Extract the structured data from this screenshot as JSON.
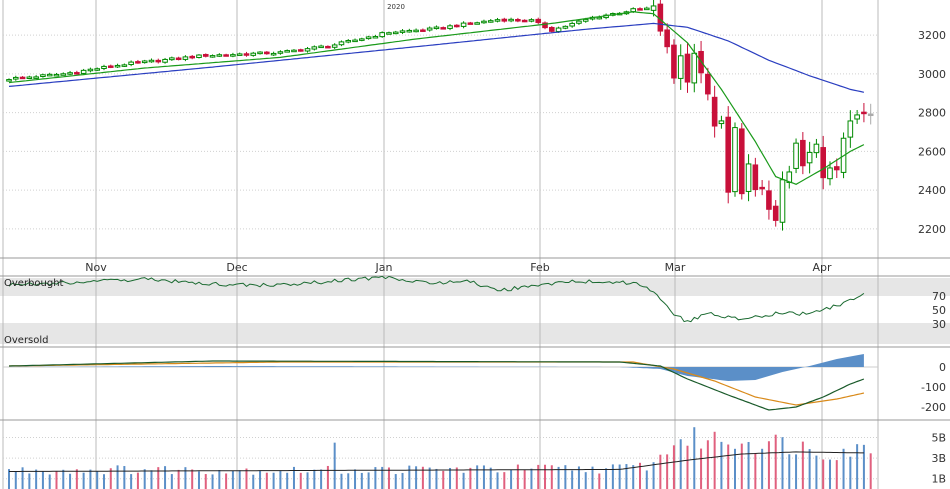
{
  "colors": {
    "up": "#008a00",
    "down": "#c8103a",
    "last": "#aaaaaa",
    "ma_short": "#1a9a1a",
    "ma_long": "#2a3ec0",
    "rsi": "#1a6a30",
    "macd_line": "#1a5a2a",
    "signal_line": "#d98a1a",
    "histogram": "#5b8fc8",
    "vol_up": "#5b8fc8",
    "vol_down": "#e0607e",
    "vol_avg": "#222222",
    "grid": "#bbbbbb",
    "band": "#e6e6e6"
  },
  "chart_data": [
    {
      "id": "price",
      "type": "candlestick",
      "title": "",
      "year_label": "2020",
      "x_labels": [
        "Nov",
        "Dec",
        "Jan",
        "Feb",
        "Mar",
        "Apr"
      ],
      "y_ticks": [
        "2200",
        "2400",
        "2600",
        "2800",
        "3000",
        "3200"
      ],
      "ylim": [
        2050,
        3350
      ],
      "anchors": [
        {
          "t": 0,
          "v": 2975
        },
        {
          "t": 8,
          "v": 3000
        },
        {
          "t": 17,
          "v": 3050
        },
        {
          "t": 29,
          "v": 3095
        },
        {
          "t": 40,
          "v": 3110
        },
        {
          "t": 48,
          "v": 3150
        },
        {
          "t": 56,
          "v": 3215
        },
        {
          "t": 62,
          "v": 3230
        },
        {
          "t": 66,
          "v": 3250
        },
        {
          "t": 72,
          "v": 3280
        },
        {
          "t": 77,
          "v": 3275
        },
        {
          "t": 80,
          "v": 3225
        },
        {
          "t": 86,
          "v": 3290
        },
        {
          "t": 92,
          "v": 3330
        },
        {
          "t": 95,
          "v": 3340
        },
        {
          "t": 96,
          "v": 3225
        },
        {
          "t": 97,
          "v": 3130
        },
        {
          "t": 98,
          "v": 2980
        },
        {
          "t": 99,
          "v": 3100
        },
        {
          "t": 100,
          "v": 2955
        },
        {
          "t": 101,
          "v": 3120
        },
        {
          "t": 102,
          "v": 3010
        },
        {
          "t": 103,
          "v": 2885
        },
        {
          "t": 104,
          "v": 2740
        },
        {
          "t": 105,
          "v": 2745
        },
        {
          "t": 106,
          "v": 2385
        },
        {
          "t": 107,
          "v": 2715
        },
        {
          "t": 108,
          "v": 2395
        },
        {
          "t": 109,
          "v": 2530
        },
        {
          "t": 110,
          "v": 2390
        },
        {
          "t": 111,
          "v": 2410
        },
        {
          "t": 112,
          "v": 2300
        },
        {
          "t": 113,
          "v": 2240
        },
        {
          "t": 114,
          "v": 2450
        },
        {
          "t": 115,
          "v": 2480
        },
        {
          "t": 116,
          "v": 2630
        },
        {
          "t": 117,
          "v": 2540
        },
        {
          "t": 118,
          "v": 2585
        },
        {
          "t": 119,
          "v": 2625
        },
        {
          "t": 120,
          "v": 2470
        },
        {
          "t": 121,
          "v": 2525
        },
        {
          "t": 122,
          "v": 2490
        },
        {
          "t": 123,
          "v": 2665
        },
        {
          "t": 124,
          "v": 2750
        },
        {
          "t": 125,
          "v": 2785
        },
        {
          "t": 126,
          "v": 2790
        }
      ],
      "ma_short": [
        {
          "t": 0,
          "v": 2955
        },
        {
          "t": 20,
          "v": 3030
        },
        {
          "t": 40,
          "v": 3085
        },
        {
          "t": 60,
          "v": 3180
        },
        {
          "t": 80,
          "v": 3260
        },
        {
          "t": 92,
          "v": 3320
        },
        {
          "t": 95,
          "v": 3310
        },
        {
          "t": 100,
          "v": 3160
        },
        {
          "t": 105,
          "v": 2920
        },
        {
          "t": 110,
          "v": 2650
        },
        {
          "t": 113,
          "v": 2470
        },
        {
          "t": 116,
          "v": 2430
        },
        {
          "t": 120,
          "v": 2510
        },
        {
          "t": 124,
          "v": 2600
        },
        {
          "t": 126,
          "v": 2635
        }
      ],
      "ma_long": [
        {
          "t": 0,
          "v": 2935
        },
        {
          "t": 30,
          "v": 3035
        },
        {
          "t": 60,
          "v": 3140
        },
        {
          "t": 85,
          "v": 3230
        },
        {
          "t": 95,
          "v": 3260
        },
        {
          "t": 100,
          "v": 3240
        },
        {
          "t": 106,
          "v": 3170
        },
        {
          "t": 112,
          "v": 3070
        },
        {
          "t": 118,
          "v": 2990
        },
        {
          "t": 124,
          "v": 2920
        },
        {
          "t": 126,
          "v": 2905
        }
      ]
    },
    {
      "id": "rsi",
      "type": "line",
      "zone_labels": [
        "Overbought",
        "Oversold"
      ],
      "y_ticks": [
        "70",
        "50",
        "30"
      ],
      "ylim": [
        0,
        100
      ],
      "anchors": [
        {
          "t": 0,
          "v": 60
        },
        {
          "t": 20,
          "v": 66
        },
        {
          "t": 33,
          "v": 60
        },
        {
          "t": 40,
          "v": 60
        },
        {
          "t": 55,
          "v": 68
        },
        {
          "t": 62,
          "v": 62
        },
        {
          "t": 68,
          "v": 64
        },
        {
          "t": 72,
          "v": 54
        },
        {
          "t": 76,
          "v": 58
        },
        {
          "t": 84,
          "v": 64
        },
        {
          "t": 92,
          "v": 62
        },
        {
          "t": 95,
          "v": 54
        },
        {
          "t": 98,
          "v": 28
        },
        {
          "t": 100,
          "v": 22
        },
        {
          "t": 103,
          "v": 30
        },
        {
          "t": 108,
          "v": 24
        },
        {
          "t": 113,
          "v": 30
        },
        {
          "t": 118,
          "v": 30
        },
        {
          "t": 122,
          "v": 38
        },
        {
          "t": 126,
          "v": 50
        }
      ]
    },
    {
      "id": "macd",
      "type": "line",
      "y_ticks": [
        "0",
        "-100",
        "-200"
      ],
      "ylim": [
        -260,
        60
      ],
      "macd_line": [
        {
          "t": 0,
          "v": 5
        },
        {
          "t": 30,
          "v": 30
        },
        {
          "t": 90,
          "v": 25
        },
        {
          "t": 96,
          "v": 5
        },
        {
          "t": 100,
          "v": -60
        },
        {
          "t": 106,
          "v": -140
        },
        {
          "t": 112,
          "v": -215
        },
        {
          "t": 116,
          "v": -200
        },
        {
          "t": 120,
          "v": -150
        },
        {
          "t": 124,
          "v": -85
        },
        {
          "t": 126,
          "v": -60
        }
      ],
      "signal_line": [
        {
          "t": 0,
          "v": 5
        },
        {
          "t": 40,
          "v": 25
        },
        {
          "t": 92,
          "v": 25
        },
        {
          "t": 98,
          "v": -10
        },
        {
          "t": 104,
          "v": -70
        },
        {
          "t": 110,
          "v": -150
        },
        {
          "t": 116,
          "v": -190
        },
        {
          "t": 122,
          "v": -160
        },
        {
          "t": 126,
          "v": -130
        }
      ],
      "histogram": [
        {
          "t": 0,
          "v": 0
        },
        {
          "t": 30,
          "v": 5
        },
        {
          "t": 90,
          "v": 0
        },
        {
          "t": 96,
          "v": -10
        },
        {
          "t": 100,
          "v": -45
        },
        {
          "t": 106,
          "v": -70
        },
        {
          "t": 110,
          "v": -65
        },
        {
          "t": 114,
          "v": -25
        },
        {
          "t": 118,
          "v": 5
        },
        {
          "t": 122,
          "v": 40
        },
        {
          "t": 126,
          "v": 65
        }
      ]
    },
    {
      "id": "volume",
      "type": "bar",
      "y_ticks": [
        "5B",
        "3B",
        "1B"
      ],
      "ylim": [
        0,
        6
      ],
      "anchors": [
        {
          "t": 0,
          "v": 1.8
        },
        {
          "t": 20,
          "v": 1.9
        },
        {
          "t": 45,
          "v": 1.8
        },
        {
          "t": 60,
          "v": 1.9
        },
        {
          "t": 90,
          "v": 2.0
        },
        {
          "t": 95,
          "v": 2.4
        },
        {
          "t": 98,
          "v": 4.6
        },
        {
          "t": 102,
          "v": 4.9
        },
        {
          "t": 108,
          "v": 4.7
        },
        {
          "t": 115,
          "v": 4.4
        },
        {
          "t": 120,
          "v": 3.6
        },
        {
          "t": 126,
          "v": 3.9
        }
      ],
      "avg": [
        {
          "t": 0,
          "v": 1.7
        },
        {
          "t": 90,
          "v": 1.9
        },
        {
          "t": 100,
          "v": 2.8
        },
        {
          "t": 108,
          "v": 3.4
        },
        {
          "t": 116,
          "v": 3.6
        },
        {
          "t": 126,
          "v": 3.5
        }
      ]
    }
  ]
}
